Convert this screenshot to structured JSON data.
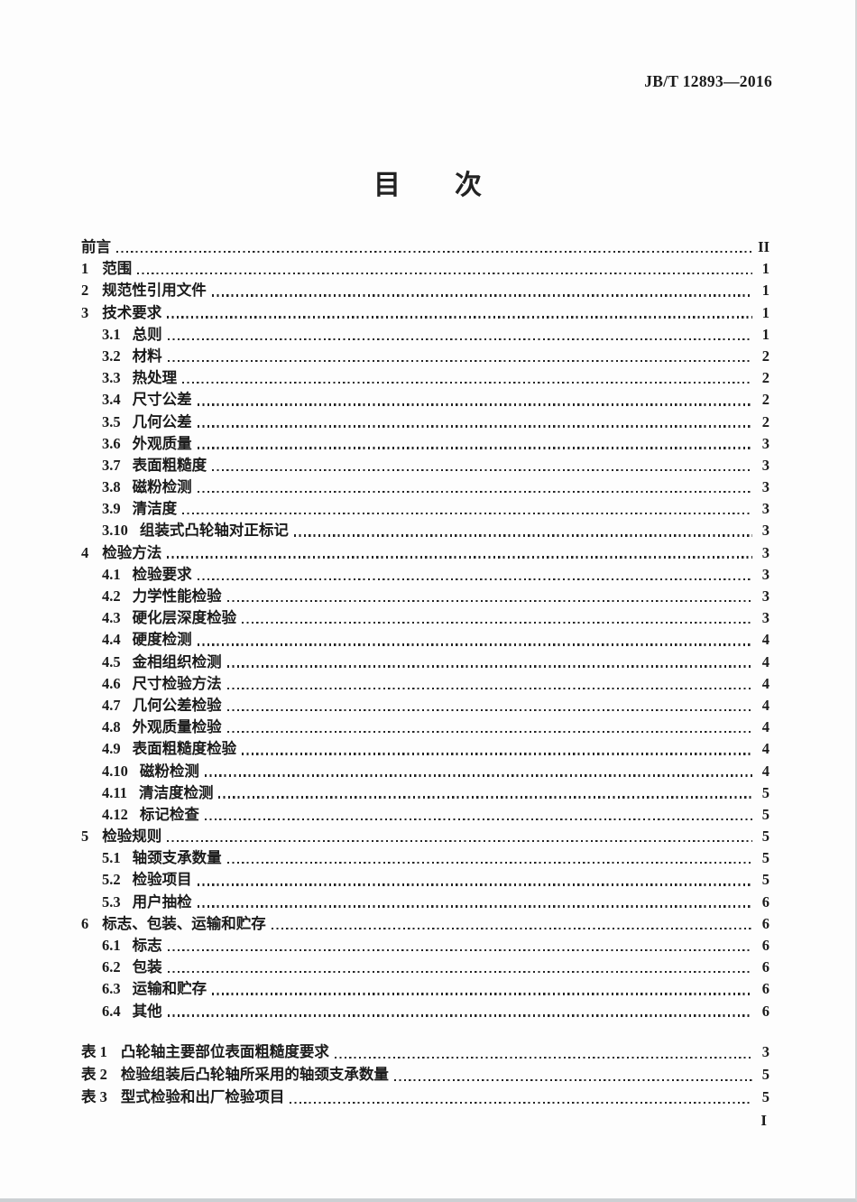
{
  "header": {
    "doc_number": "JB/T 12893—2016"
  },
  "title": "目　　次",
  "toc": {
    "entries": [
      {
        "num": "",
        "label": "前言",
        "page": "II",
        "level": 0
      },
      {
        "num": "1",
        "label": "范围",
        "page": "1",
        "level": 0
      },
      {
        "num": "2",
        "label": "规范性引用文件",
        "page": "1",
        "level": 0
      },
      {
        "num": "3",
        "label": "技术要求",
        "page": "1",
        "level": 0
      },
      {
        "num": "3.1",
        "label": "总则",
        "page": "1",
        "level": 1
      },
      {
        "num": "3.2",
        "label": "材料",
        "page": "2",
        "level": 1
      },
      {
        "num": "3.3",
        "label": "热处理",
        "page": "2",
        "level": 1
      },
      {
        "num": "3.4",
        "label": "尺寸公差",
        "page": "2",
        "level": 1
      },
      {
        "num": "3.5",
        "label": "几何公差",
        "page": "2",
        "level": 1
      },
      {
        "num": "3.6",
        "label": "外观质量",
        "page": "3",
        "level": 1
      },
      {
        "num": "3.7",
        "label": "表面粗糙度",
        "page": "3",
        "level": 1
      },
      {
        "num": "3.8",
        "label": "磁粉检测",
        "page": "3",
        "level": 1
      },
      {
        "num": "3.9",
        "label": "清洁度",
        "page": "3",
        "level": 1
      },
      {
        "num": "3.10",
        "label": "组装式凸轮轴对正标记",
        "page": "3",
        "level": 1
      },
      {
        "num": "4",
        "label": "检验方法",
        "page": "3",
        "level": 0
      },
      {
        "num": "4.1",
        "label": "检验要求",
        "page": "3",
        "level": 1
      },
      {
        "num": "4.2",
        "label": "力学性能检验",
        "page": "3",
        "level": 1
      },
      {
        "num": "4.3",
        "label": "硬化层深度检验",
        "page": "3",
        "level": 1
      },
      {
        "num": "4.4",
        "label": "硬度检测",
        "page": "4",
        "level": 1
      },
      {
        "num": "4.5",
        "label": "金相组织检测",
        "page": "4",
        "level": 1
      },
      {
        "num": "4.6",
        "label": "尺寸检验方法",
        "page": "4",
        "level": 1
      },
      {
        "num": "4.7",
        "label": "几何公差检验",
        "page": "4",
        "level": 1
      },
      {
        "num": "4.8",
        "label": "外观质量检验",
        "page": "4",
        "level": 1
      },
      {
        "num": "4.9",
        "label": "表面粗糙度检验",
        "page": "4",
        "level": 1
      },
      {
        "num": "4.10",
        "label": "磁粉检测",
        "page": "4",
        "level": 1
      },
      {
        "num": "4.11",
        "label": "清洁度检测",
        "page": "5",
        "level": 1
      },
      {
        "num": "4.12",
        "label": "标记检查",
        "page": "5",
        "level": 1
      },
      {
        "num": "5",
        "label": "检验规则",
        "page": "5",
        "level": 0
      },
      {
        "num": "5.1",
        "label": "轴颈支承数量",
        "page": "5",
        "level": 1
      },
      {
        "num": "5.2",
        "label": "检验项目",
        "page": "5",
        "level": 1
      },
      {
        "num": "5.3",
        "label": "用户抽检",
        "page": "6",
        "level": 1
      },
      {
        "num": "6",
        "label": "标志、包装、运输和贮存",
        "page": "6",
        "level": 0
      },
      {
        "num": "6.1",
        "label": "标志",
        "page": "6",
        "level": 1
      },
      {
        "num": "6.2",
        "label": "包装",
        "page": "6",
        "level": 1
      },
      {
        "num": "6.3",
        "label": "运输和贮存",
        "page": "6",
        "level": 1
      },
      {
        "num": "6.4",
        "label": "其他",
        "page": "6",
        "level": 1
      }
    ],
    "tables": [
      {
        "num": "表 1",
        "label": "凸轮轴主要部位表面粗糙度要求",
        "page": "3"
      },
      {
        "num": "表 2",
        "label": "检验组装后凸轮轴所采用的轴颈支承数量",
        "page": "5"
      },
      {
        "num": "表 3",
        "label": "型式检验和出厂检验项目",
        "page": "5"
      }
    ]
  },
  "footer": {
    "page_number": "I"
  },
  "colors": {
    "ink": "#1b1b1b",
    "paper": "#fdfdfd"
  }
}
